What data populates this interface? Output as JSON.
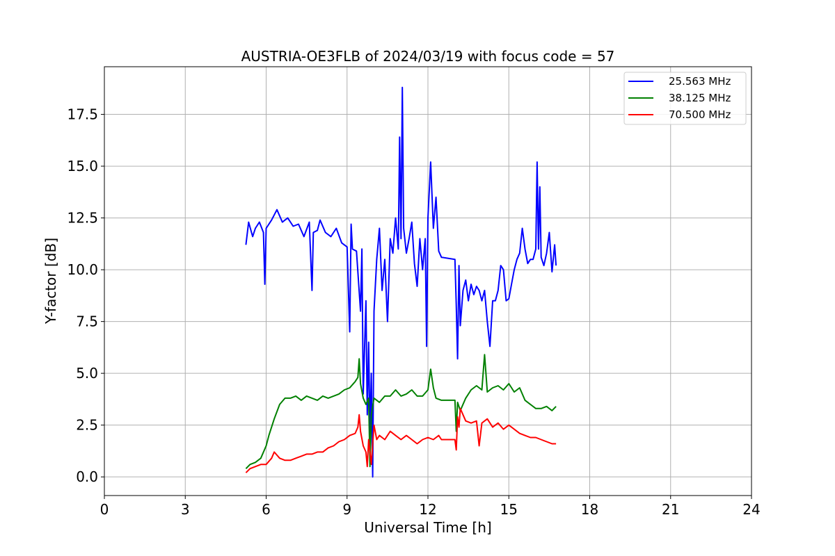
{
  "chart_data": {
    "type": "line",
    "title": "AUSTRIA-OE3FLB of 2024/03/19 with focus code = 57",
    "xlabel": "Universal Time [h]",
    "ylabel": "Y-factor [dB]",
    "xlim": [
      0,
      24
    ],
    "ylim": [
      -0.9,
      19.8
    ],
    "xticks": [
      0,
      3,
      6,
      9,
      12,
      15,
      18,
      21,
      24
    ],
    "xtick_labels": [
      "0",
      "3",
      "6",
      "9",
      "12",
      "15",
      "18",
      "21",
      "24"
    ],
    "yticks": [
      0.0,
      2.5,
      5.0,
      7.5,
      10.0,
      12.5,
      15.0,
      17.5
    ],
    "ytick_labels": [
      "0.0",
      "2.5",
      "5.0",
      "7.5",
      "10.0",
      "12.5",
      "15.0",
      "17.5"
    ],
    "grid": true,
    "legend_position": "top-right",
    "series": [
      {
        "name": "25.563 MHz",
        "color": "#0000ff",
        "x": [
          5.25,
          5.35,
          5.5,
          5.6,
          5.75,
          5.9,
          5.95,
          6.0,
          6.2,
          6.4,
          6.6,
          6.8,
          7.0,
          7.2,
          7.4,
          7.6,
          7.7,
          7.75,
          7.9,
          8.0,
          8.2,
          8.4,
          8.6,
          8.8,
          9.0,
          9.1,
          9.15,
          9.2,
          9.35,
          9.5,
          9.55,
          9.6,
          9.7,
          9.75,
          9.8,
          9.85,
          9.9,
          9.95,
          10.0,
          10.1,
          10.2,
          10.3,
          10.4,
          10.5,
          10.6,
          10.7,
          10.8,
          10.9,
          10.95,
          11.0,
          11.05,
          11.1,
          11.2,
          11.3,
          11.4,
          11.5,
          11.6,
          11.7,
          11.8,
          11.9,
          11.95,
          12.0,
          12.1,
          12.2,
          12.3,
          12.4,
          12.5,
          13.0,
          13.05,
          13.1,
          13.15,
          13.2,
          13.3,
          13.4,
          13.5,
          13.6,
          13.7,
          13.8,
          13.9,
          14.0,
          14.1,
          14.2,
          14.3,
          14.4,
          14.5,
          14.6,
          14.7,
          14.8,
          14.9,
          15.0,
          15.1,
          15.2,
          15.3,
          15.4,
          15.5,
          15.6,
          15.7,
          15.8,
          15.9,
          16.0,
          16.05,
          16.1,
          16.15,
          16.2,
          16.3,
          16.4,
          16.5,
          16.6,
          16.7,
          16.75
        ],
        "y": [
          11.2,
          12.3,
          11.6,
          12.0,
          12.3,
          11.8,
          9.3,
          12.0,
          12.4,
          12.9,
          12.3,
          12.5,
          12.1,
          12.2,
          11.6,
          12.3,
          9.0,
          11.8,
          11.9,
          12.4,
          11.8,
          11.6,
          12.0,
          11.3,
          11.1,
          7.0,
          12.2,
          11.0,
          10.9,
          8.0,
          11.0,
          4.0,
          8.5,
          3.0,
          6.5,
          2.0,
          5.0,
          0.0,
          8.0,
          10.5,
          12.0,
          9.0,
          10.5,
          7.5,
          11.5,
          10.8,
          12.5,
          11.0,
          16.4,
          11.5,
          18.8,
          12.0,
          10.8,
          11.5,
          12.3,
          10.3,
          9.2,
          11.5,
          10.0,
          11.5,
          6.3,
          12.5,
          15.2,
          12.0,
          13.5,
          10.9,
          10.6,
          10.5,
          8.3,
          5.7,
          10.2,
          7.3,
          9.0,
          9.5,
          8.5,
          9.3,
          8.8,
          9.2,
          9.0,
          8.5,
          9.0,
          7.5,
          6.3,
          8.5,
          8.5,
          9.0,
          10.2,
          10.0,
          8.5,
          8.6,
          9.3,
          10.0,
          10.5,
          10.8,
          12.0,
          11.0,
          10.3,
          10.5,
          10.5,
          11.0,
          15.2,
          11.0,
          14.0,
          10.6,
          10.2,
          10.8,
          11.8,
          9.9,
          11.2,
          10.2
        ]
      },
      {
        "name": "38.125 MHz",
        "color": "#008000",
        "x": [
          5.25,
          5.4,
          5.6,
          5.8,
          6.0,
          6.1,
          6.3,
          6.5,
          6.7,
          6.9,
          7.1,
          7.3,
          7.5,
          7.7,
          7.9,
          8.1,
          8.3,
          8.5,
          8.7,
          8.9,
          9.1,
          9.3,
          9.4,
          9.45,
          9.5,
          9.6,
          9.7,
          9.8,
          9.85,
          9.9,
          10.0,
          10.2,
          10.4,
          10.6,
          10.8,
          11.0,
          11.2,
          11.4,
          11.6,
          11.8,
          12.0,
          12.1,
          12.2,
          12.3,
          12.5,
          13.0,
          13.05,
          13.1,
          13.2,
          13.4,
          13.6,
          13.8,
          14.0,
          14.1,
          14.2,
          14.4,
          14.6,
          14.8,
          15.0,
          15.2,
          15.4,
          15.6,
          15.8,
          16.0,
          16.2,
          16.4,
          16.6,
          16.75
        ],
        "y": [
          0.4,
          0.6,
          0.7,
          0.9,
          1.5,
          2.0,
          2.8,
          3.5,
          3.8,
          3.8,
          3.9,
          3.7,
          3.9,
          3.8,
          3.7,
          3.9,
          3.8,
          3.9,
          4.0,
          4.2,
          4.3,
          4.6,
          4.8,
          5.7,
          4.5,
          3.8,
          3.5,
          3.8,
          0.5,
          3.0,
          3.8,
          3.6,
          3.9,
          3.9,
          4.2,
          3.9,
          4.0,
          4.2,
          3.9,
          3.9,
          4.2,
          5.2,
          4.3,
          3.8,
          3.7,
          3.7,
          2.2,
          3.6,
          3.2,
          3.8,
          4.2,
          4.4,
          4.2,
          5.9,
          4.1,
          4.3,
          4.4,
          4.2,
          4.5,
          4.1,
          4.3,
          3.7,
          3.5,
          3.3,
          3.3,
          3.4,
          3.2,
          3.4
        ]
      },
      {
        "name": "70.500 MHz",
        "color": "#ff0000",
        "x": [
          5.25,
          5.4,
          5.6,
          5.8,
          6.0,
          6.2,
          6.3,
          6.5,
          6.7,
          6.9,
          7.1,
          7.3,
          7.5,
          7.7,
          7.9,
          8.1,
          8.3,
          8.5,
          8.7,
          8.9,
          9.1,
          9.3,
          9.4,
          9.45,
          9.5,
          9.6,
          9.7,
          9.75,
          9.8,
          9.9,
          10.0,
          10.1,
          10.2,
          10.4,
          10.6,
          10.8,
          11.0,
          11.2,
          11.4,
          11.6,
          11.8,
          12.0,
          12.2,
          12.4,
          12.5,
          13.0,
          13.05,
          13.1,
          13.15,
          13.2,
          13.4,
          13.6,
          13.8,
          13.9,
          14.0,
          14.2,
          14.4,
          14.6,
          14.8,
          15.0,
          15.2,
          15.4,
          15.6,
          15.8,
          16.0,
          16.2,
          16.4,
          16.6,
          16.75
        ],
        "y": [
          0.2,
          0.4,
          0.5,
          0.6,
          0.6,
          0.9,
          1.2,
          0.9,
          0.8,
          0.8,
          0.9,
          1.0,
          1.1,
          1.1,
          1.2,
          1.2,
          1.4,
          1.5,
          1.7,
          1.8,
          2.0,
          2.1,
          2.4,
          3.0,
          2.2,
          1.5,
          1.2,
          0.5,
          1.8,
          0.6,
          2.5,
          1.8,
          2.0,
          1.8,
          2.2,
          2.0,
          1.8,
          2.0,
          1.8,
          1.6,
          1.8,
          1.9,
          1.8,
          2.0,
          1.8,
          1.8,
          1.3,
          2.9,
          2.4,
          3.3,
          2.7,
          2.6,
          2.7,
          1.5,
          2.6,
          2.8,
          2.4,
          2.6,
          2.3,
          2.5,
          2.3,
          2.1,
          2.0,
          1.9,
          1.9,
          1.8,
          1.7,
          1.6,
          1.6
        ]
      }
    ]
  }
}
